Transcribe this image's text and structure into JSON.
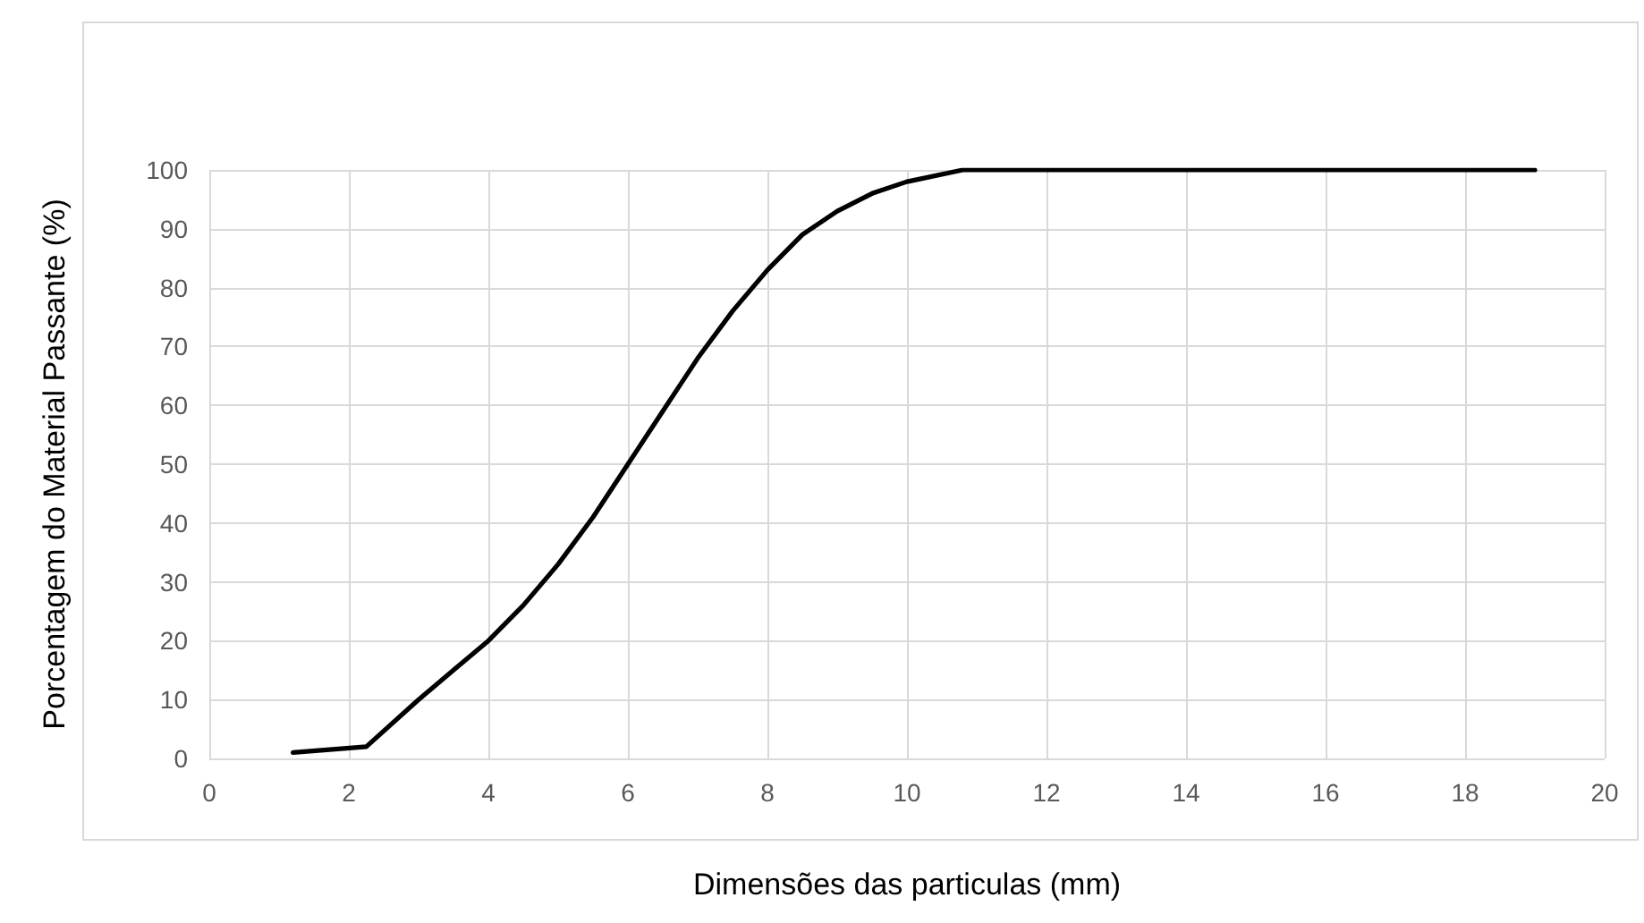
{
  "chart_data": {
    "type": "line",
    "xlabel": "Dimensões das particulas (mm)",
    "ylabel": "Porcentagem do Material Passante (%)",
    "xlim": [
      0,
      20
    ],
    "xticks": [
      0,
      2,
      4,
      6,
      8,
      10,
      12,
      14,
      16,
      18,
      20
    ],
    "ylim": [
      0,
      100
    ],
    "yticks": [
      0,
      10,
      20,
      30,
      40,
      50,
      60,
      70,
      80,
      90,
      100
    ],
    "grid": true,
    "marker": "none",
    "line_style": "solid",
    "series": [
      {
        "color": "#000000",
        "x": [
          1.2,
          2.25,
          3,
          3.5,
          4,
          4.5,
          5,
          5.5,
          6,
          6.5,
          7,
          7.5,
          8,
          8.5,
          9,
          9.5,
          10,
          10.8,
          19
        ],
        "values": [
          1,
          2,
          10,
          15,
          20,
          26,
          33,
          41,
          50,
          59,
          68,
          76,
          83,
          89,
          93,
          96,
          98,
          100,
          100
        ]
      }
    ]
  }
}
